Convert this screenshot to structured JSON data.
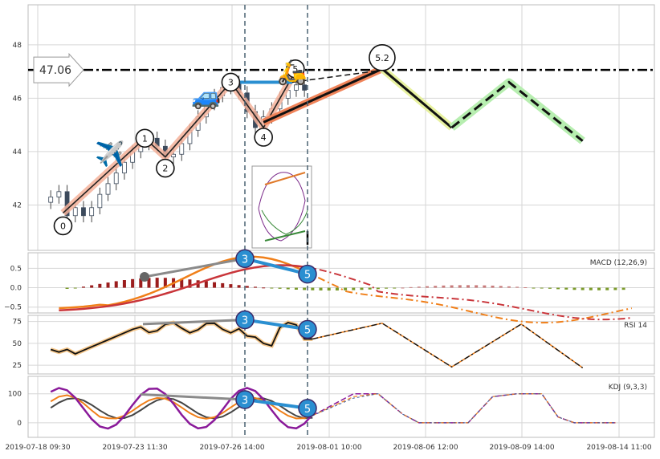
{
  "chart_data": {
    "type": "line",
    "x_labels": [
      "2019-07-18 09:30",
      "2019-07-23 11:30",
      "2019-07-26 14:00",
      "2019-08-01 10:00",
      "2019-08-06 12:00",
      "2019-08-09 14:00",
      "2019-08-14 11:00"
    ],
    "price_panel": {
      "ylim": [
        40.3,
        49.5
      ],
      "yticks": [
        "42",
        "44",
        "46",
        "48"
      ],
      "level_label": "47.06",
      "level_value": 47.06,
      "price_path": [
        [
          1,
          42.3
        ],
        [
          2,
          42.5
        ],
        [
          3,
          41.6
        ],
        [
          4,
          41.9
        ],
        [
          5,
          41.6
        ],
        [
          6,
          41.9
        ],
        [
          7,
          42.4
        ],
        [
          8,
          42.8
        ],
        [
          9,
          43.2
        ],
        [
          10,
          43.6
        ],
        [
          11,
          44.0
        ],
        [
          12,
          44.3
        ],
        [
          13,
          44.5
        ],
        [
          14,
          44.2
        ],
        [
          15,
          43.8
        ],
        [
          16,
          43.9
        ],
        [
          17,
          44.3
        ],
        [
          18,
          44.8
        ],
        [
          19,
          45.3
        ],
        [
          20,
          45.8
        ],
        [
          21,
          46.1
        ],
        [
          22,
          46.4
        ],
        [
          23,
          46.6
        ],
        [
          24,
          46.2
        ],
        [
          25,
          45.5
        ],
        [
          26,
          44.9
        ],
        [
          27,
          45.3
        ],
        [
          28,
          45.6
        ],
        [
          29,
          46.0
        ],
        [
          30,
          46.3
        ],
        [
          31,
          46.5
        ],
        [
          32,
          46.3
        ]
      ],
      "wave_points": [
        {
          "label": "0",
          "x": 2.5,
          "y": 41.7
        },
        {
          "label": "1",
          "x": 12.5,
          "y": 44.5
        },
        {
          "label": "2",
          "x": 15,
          "y": 43.8
        },
        {
          "label": "3",
          "x": 23,
          "y": 46.6
        },
        {
          "label": "4",
          "x": 27,
          "y": 44.9
        },
        {
          "label": "5",
          "x": 30.5,
          "y": 46.8
        }
      ],
      "projection_main": [
        [
          27,
          45.1
        ],
        [
          41.5,
          47.1
        ],
        [
          50,
          44.9
        ],
        [
          57,
          46.6
        ],
        [
          66,
          44.4
        ]
      ],
      "projection_label": "5.2",
      "projection_dashed": [
        [
          30.5,
          46.6
        ],
        [
          41.5,
          47.05
        ]
      ],
      "mark_3_to_5": [
        [
          23,
          46.6
        ],
        [
          30.5,
          46.6
        ]
      ],
      "icons": [
        "airplane-icon",
        "car-icon",
        "scooter-icon"
      ]
    },
    "macd_panel": {
      "label": "MACD (12,26,9)",
      "yticks": [
        "0.5",
        "0.0",
        "−0.5"
      ],
      "ylim": [
        -0.65,
        0.9
      ],
      "wave_labels": [
        "3",
        "5"
      ]
    },
    "rsi_panel": {
      "label": "RSI 14",
      "yticks": [
        "75",
        "50",
        "25"
      ],
      "ylim": [
        15,
        82
      ],
      "wave_labels": [
        "3",
        "5"
      ]
    },
    "kdj_panel": {
      "label": "KDJ (9,3,3)",
      "yticks": [
        "100",
        "0"
      ],
      "ylim": [
        -50,
        160
      ],
      "wave_labels": [
        "3",
        "5"
      ]
    }
  }
}
